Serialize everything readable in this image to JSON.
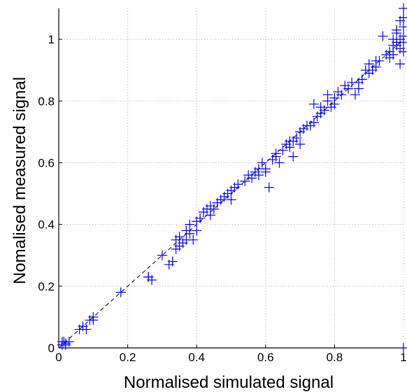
{
  "chart_data": {
    "type": "scatter",
    "title": "",
    "xlabel": "Normalised simulated signal",
    "ylabel": "Nomalised measured signal",
    "xlim": [
      0,
      1
    ],
    "ylim": [
      0,
      1.1
    ],
    "xticks": [
      0,
      0.2,
      0.4,
      0.6,
      0.8,
      1
    ],
    "yticks": [
      0,
      0.2,
      0.4,
      0.6,
      0.8,
      1
    ],
    "xtick_labels": [
      "0",
      "0.2",
      "0.4",
      "0.6",
      "0.8",
      "1"
    ],
    "ytick_labels": [
      "0",
      "0.2",
      "0.4",
      "0.6",
      "0.8",
      "1"
    ],
    "grid": true,
    "grid_style": "dotted",
    "reference_line": {
      "from": [
        0,
        0
      ],
      "to": [
        1,
        1
      ],
      "style": "dashed"
    },
    "marker": "+",
    "colors": {
      "marker": "#0000ff",
      "reference_line": "#000000",
      "grid": "#b0b0b0"
    },
    "series": [
      {
        "x": [
          0.01,
          0.015,
          0.02,
          0.02,
          0.03,
          0.01,
          0.06,
          0.07,
          0.08,
          0.09,
          0.1,
          0.1,
          0.18,
          0.26,
          0.27,
          0.26,
          0.3,
          0.32,
          0.33,
          0.34,
          0.34,
          0.35,
          0.35,
          0.36,
          0.37,
          0.37,
          0.38,
          0.38,
          0.39,
          0.4,
          0.4,
          0.41,
          0.42,
          0.43,
          0.44,
          0.44,
          0.45,
          0.46,
          0.47,
          0.48,
          0.49,
          0.5,
          0.5,
          0.51,
          0.52,
          0.54,
          0.55,
          0.56,
          0.57,
          0.58,
          0.58,
          0.59,
          0.6,
          0.6,
          0.61,
          0.62,
          0.63,
          0.63,
          0.64,
          0.65,
          0.66,
          0.67,
          0.67,
          0.68,
          0.68,
          0.69,
          0.7,
          0.7,
          0.71,
          0.72,
          0.73,
          0.74,
          0.74,
          0.75,
          0.76,
          0.76,
          0.77,
          0.78,
          0.78,
          0.79,
          0.8,
          0.8,
          0.81,
          0.82,
          0.83,
          0.84,
          0.85,
          0.86,
          0.87,
          0.87,
          0.88,
          0.89,
          0.9,
          0.9,
          0.91,
          0.92,
          0.92,
          0.93,
          0.94,
          0.95,
          0.96,
          0.97,
          0.97,
          0.98,
          0.98,
          0.99,
          0.99,
          1.0,
          1.0,
          0.99,
          1.0,
          0.98,
          0.97,
          1.0,
          0.99,
          0.98,
          1.0,
          0.96,
          1.0,
          1.0
        ],
        "y": [
          0.01,
          0.02,
          0.015,
          0.01,
          0.02,
          0.02,
          0.06,
          0.07,
          0.06,
          0.09,
          0.09,
          0.1,
          0.18,
          0.23,
          0.22,
          0.23,
          0.3,
          0.27,
          0.28,
          0.32,
          0.35,
          0.33,
          0.36,
          0.34,
          0.38,
          0.35,
          0.37,
          0.4,
          0.35,
          0.38,
          0.41,
          0.42,
          0.44,
          0.45,
          0.43,
          0.46,
          0.45,
          0.47,
          0.48,
          0.49,
          0.5,
          0.48,
          0.51,
          0.52,
          0.53,
          0.54,
          0.56,
          0.55,
          0.57,
          0.58,
          0.56,
          0.6,
          0.58,
          0.57,
          0.52,
          0.61,
          0.62,
          0.63,
          0.6,
          0.64,
          0.66,
          0.67,
          0.65,
          0.67,
          0.62,
          0.68,
          0.66,
          0.7,
          0.71,
          0.72,
          0.72,
          0.73,
          0.79,
          0.75,
          0.76,
          0.78,
          0.77,
          0.8,
          0.82,
          0.78,
          0.81,
          0.79,
          0.83,
          0.82,
          0.85,
          0.84,
          0.86,
          0.82,
          0.86,
          0.84,
          0.87,
          0.9,
          0.89,
          0.92,
          0.9,
          0.91,
          0.93,
          0.93,
          1.01,
          0.95,
          0.96,
          0.98,
          1.0,
          0.99,
          1.02,
          1.0,
          0.97,
          1.1,
          1.04,
          1.06,
          1.01,
          0.98,
          0.95,
          0.96,
          0.92,
          1.03,
          1.07,
          0.94,
          0.0,
          0.99
        ]
      }
    ]
  }
}
